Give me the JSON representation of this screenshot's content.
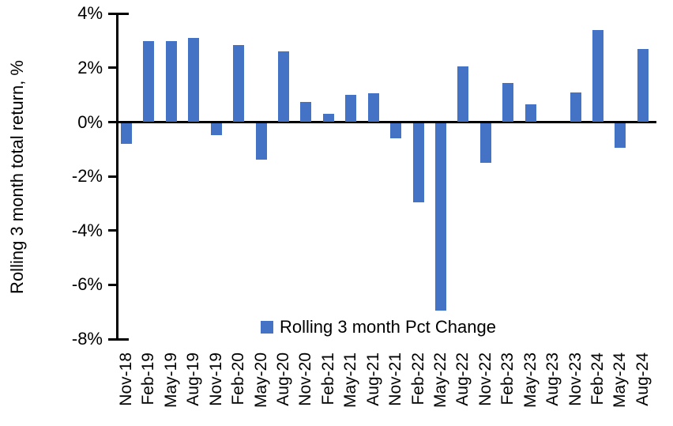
{
  "chart_data": {
    "type": "bar",
    "title": "",
    "xlabel": "",
    "ylabel": "Rolling 3 month total return, %",
    "categories": [
      "Nov-18",
      "Feb-19",
      "May-19",
      "Aug-19",
      "Nov-19",
      "Feb-20",
      "May-20",
      "Aug-20",
      "Nov-20",
      "Feb-21",
      "May-21",
      "Aug-21",
      "Nov-21",
      "Feb-22",
      "May-22",
      "Aug-22",
      "Nov-22",
      "Feb-23",
      "May-23",
      "Aug-23",
      "Nov-23",
      "Feb-24",
      "May-24",
      "Aug-24"
    ],
    "values": [
      -0.75,
      3.0,
      3.0,
      3.1,
      -0.45,
      2.85,
      -1.35,
      2.6,
      0.75,
      0.3,
      1.0,
      1.05,
      -0.55,
      -2.9,
      -6.9,
      2.05,
      -1.45,
      1.45,
      0.65,
      0.0,
      1.1,
      3.4,
      -0.9,
      2.7
    ],
    "series_name": "Rolling 3 month Pct Change",
    "ylim": [
      -8,
      4
    ],
    "ytick_values": [
      4,
      2,
      0,
      -2,
      -4,
      -6,
      -8
    ],
    "ytick_labels": [
      "4%",
      "2%",
      "0%",
      "-2%",
      "-4%",
      "-6%",
      "-8%"
    ],
    "grid": false,
    "legend_position": "bottom-center",
    "bar_color": "#4472C4",
    "axis_color": "#000000"
  },
  "legend": {
    "marker_color": "#4472C4",
    "label": "Rolling 3 month Pct Change"
  }
}
